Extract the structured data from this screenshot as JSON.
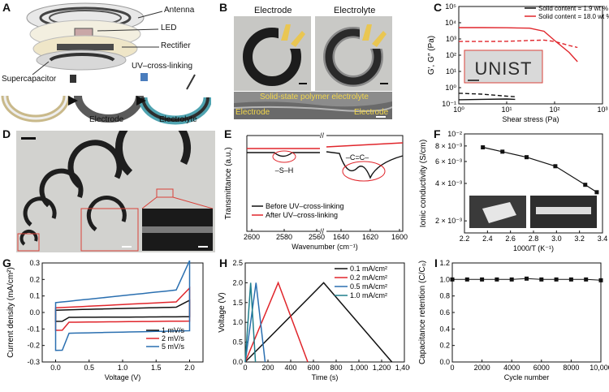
{
  "figure": {
    "panel_labels": [
      "A",
      "B",
      "C",
      "D",
      "E",
      "F",
      "G",
      "H",
      "I"
    ]
  },
  "panelA": {
    "labels": {
      "antenna": "Antenna",
      "led": "LED",
      "rectifier": "Rectifier",
      "supercap": "Supercapacitor",
      "uv": "UV–cross-linking",
      "electrode": "Electrode",
      "electrolyte": "Electrolyte"
    }
  },
  "panelB": {
    "labels": {
      "electrode": "Electrode",
      "electrolyte": "Electrolyte",
      "sem_title": "Solid-state polymer electrolyte",
      "sem_left": "Electrode",
      "sem_right": "Electrode"
    }
  },
  "panelD": {},
  "panelE": {},
  "panelF": {},
  "colors": {
    "red": "#e0252b",
    "blue": "#2a6fb0",
    "teal": "#1f7f8c",
    "black": "#111111"
  },
  "chart_data": [
    {
      "id": "C",
      "type": "line",
      "xlabel": "Shear stress (Pa)",
      "ylabel": "G′, G″ (Pa)",
      "xscale": "log",
      "yscale": "log",
      "xlim": [
        1,
        1000
      ],
      "ylim": [
        0.1,
        100000
      ],
      "xticks": [
        "10⁰",
        "10¹",
        "10²",
        "10³"
      ],
      "yticks": [
        "10⁻¹",
        "10⁰",
        "10¹",
        "10²",
        "10³",
        "10⁴",
        "10⁵"
      ],
      "inset_text": "UNIST",
      "legend": [
        "Solid content = 1.9 wt %",
        "Solid content = 18.0 wt %"
      ],
      "series": [
        {
          "name": "1.9 wt % G′",
          "color": "#111111",
          "dash": false,
          "x": [
            1,
            3,
            10,
            15
          ],
          "y": [
            0.18,
            0.19,
            0.2,
            0.19
          ]
        },
        {
          "name": "1.9 wt % G″",
          "color": "#111111",
          "dash": true,
          "x": [
            1,
            3,
            10,
            15
          ],
          "y": [
            0.45,
            0.4,
            0.3,
            0.28
          ]
        },
        {
          "name": "18.0 wt % G′",
          "color": "#e0252b",
          "dash": false,
          "x": [
            1,
            3,
            10,
            30,
            60,
            100,
            200,
            300
          ],
          "y": [
            5000,
            5000,
            4900,
            4600,
            3000,
            800,
            150,
            40
          ]
        },
        {
          "name": "18.0 wt % G″",
          "color": "#e0252b",
          "dash": true,
          "x": [
            1,
            3,
            10,
            30,
            60,
            100,
            200,
            300
          ],
          "y": [
            700,
            700,
            720,
            800,
            850,
            700,
            400,
            300
          ]
        }
      ]
    },
    {
      "id": "E",
      "type": "line",
      "xlabel": "Wavenumber (cm⁻¹)",
      "ylabel": "Transmittance (a.u.)",
      "xticks_left": [
        "2600",
        "2580",
        "2560"
      ],
      "xticks_right": [
        "1640",
        "1620",
        "1600"
      ],
      "annotations": [
        "–S–H",
        "–C=C–"
      ],
      "legend": [
        "Before UV–cross-linking",
        "After UV–cross-linking"
      ],
      "series": [
        {
          "name": "Before UV–cross-linking",
          "color": "#111111"
        },
        {
          "name": "After UV–cross-linking",
          "color": "#e0252b"
        }
      ]
    },
    {
      "id": "F",
      "type": "line",
      "xlabel": "1000/T (K⁻¹)",
      "ylabel": "Ionic conductivity (S/cm)",
      "yscale": "log",
      "xlim": [
        2.2,
        3.4
      ],
      "ylim": [
        0.0016,
        0.01
      ],
      "xticks": [
        "2.2",
        "2.4",
        "2.6",
        "2.8",
        "3.0",
        "3.2",
        "3.4"
      ],
      "yticks": [
        "10⁻²",
        "8 × 10⁻³",
        "6 × 10⁻³",
        "4 × 10⁻³",
        "2 × 10⁻³"
      ],
      "series": [
        {
          "name": "conductivity",
          "color": "#111111",
          "x": [
            2.36,
            2.53,
            2.74,
            2.99,
            3.25,
            3.35
          ],
          "y": [
            0.0078,
            0.0072,
            0.0065,
            0.0055,
            0.0039,
            0.0034
          ]
        }
      ]
    },
    {
      "id": "G",
      "type": "line",
      "xlabel": "Voltage (V)",
      "ylabel": "Current density (mA/cm²)",
      "xlim": [
        -0.2,
        2.2
      ],
      "ylim": [
        -0.3,
        0.3
      ],
      "xticks": [
        "0.0",
        "0.5",
        "1.0",
        "1.5",
        "2.0"
      ],
      "yticks": [
        "0.3",
        "0.2",
        "0.1",
        "0.0",
        "-0.1",
        "-0.2",
        "-0.3"
      ],
      "legend": [
        "1 mV/s",
        "2 mV/s",
        "5 mV/s"
      ],
      "series": [
        {
          "name": "1 mV/s",
          "color": "#111111",
          "amp": 0.04
        },
        {
          "name": "2 mV/s",
          "color": "#e0252b",
          "amp": 0.08
        },
        {
          "name": "5 mV/s",
          "color": "#2a6fb0",
          "amp": 0.17
        }
      ]
    },
    {
      "id": "H",
      "type": "line",
      "xlabel": "Time (s)",
      "ylabel": "Voltage (V)",
      "xlim": [
        0,
        1400
      ],
      "ylim": [
        0,
        2.5
      ],
      "xticks": [
        "0",
        "200",
        "400",
        "600",
        "800",
        "1,000",
        "1,200",
        "1,400"
      ],
      "yticks": [
        "0.0",
        "0.5",
        "1.0",
        "1.5",
        "2.0",
        "2.5"
      ],
      "legend": [
        "0.1 mA/cm²",
        "0.2 mA/cm²",
        "0.5 mA/cm²",
        "1.0 mA/cm²"
      ],
      "series": [
        {
          "name": "0.1 mA/cm²",
          "color": "#111111",
          "x": [
            0,
            690,
            1290
          ],
          "y": [
            0,
            2.0,
            0
          ]
        },
        {
          "name": "0.2 mA/cm²",
          "color": "#e0252b",
          "x": [
            0,
            290,
            550
          ],
          "y": [
            0,
            2.0,
            0
          ]
        },
        {
          "name": "0.5 mA/cm²",
          "color": "#2a6fb0",
          "x": [
            0,
            95,
            175
          ],
          "y": [
            0,
            2.0,
            0
          ]
        },
        {
          "name": "1.0 mA/cm²",
          "color": "#1f7f8c",
          "x": [
            0,
            48,
            90
          ],
          "y": [
            0,
            2.0,
            0
          ]
        }
      ]
    },
    {
      "id": "I",
      "type": "scatter",
      "xlabel": "Cycle number",
      "ylabel": "Capacitance retention (C/C₀)",
      "xlim": [
        0,
        10000
      ],
      "ylim": [
        0,
        1.2
      ],
      "xticks": [
        "0",
        "2000",
        "4000",
        "6000",
        "8000",
        "10,000"
      ],
      "yticks": [
        "1.2",
        "1.0",
        "0.8",
        "0.6",
        "0.4",
        "0.2",
        "0.0"
      ],
      "series": [
        {
          "name": "retention",
          "color": "#111111",
          "x": [
            0,
            1000,
            2000,
            3000,
            4000,
            5000,
            6000,
            7000,
            8000,
            9000,
            10000
          ],
          "y": [
            1.0,
            1.0,
            1.0,
            1.0,
            1.0,
            1.01,
            1.0,
            1.0,
            1.0,
            1.0,
            0.99
          ]
        }
      ]
    }
  ]
}
